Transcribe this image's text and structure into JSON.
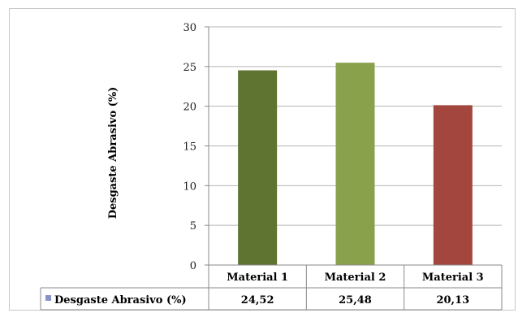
{
  "chart_data": {
    "type": "bar",
    "categories": [
      "Material 1",
      "Material 2",
      "Material 3"
    ],
    "series": [
      {
        "name": "Desgaste Abrasivo (%)",
        "values": [
          24.52,
          25.48,
          20.13
        ],
        "value_labels": [
          "24,52",
          "25,48",
          "20,13"
        ],
        "colors": [
          "#5e7430",
          "#8aa14c",
          "#a3463d"
        ]
      }
    ],
    "ylabel": "Desgaste Abrasivo (%)",
    "xlabel": "",
    "ylim": [
      0,
      30
    ],
    "yticks": [
      0,
      5,
      10,
      15,
      20,
      25,
      30
    ],
    "grid": true,
    "legend_placement": "data-table-left",
    "legend_marker_color": "#8a93c9",
    "show_data_table": true
  }
}
